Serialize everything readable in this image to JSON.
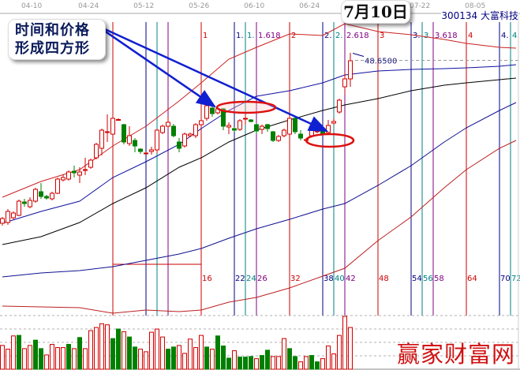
{
  "header": {
    "stock_title": "300134 大富科技",
    "callout_text_line1": "时间和价格",
    "callout_text_line2": "形成四方形",
    "date_callout": "7月10日",
    "watermark": "赢家财富网"
  },
  "colors": {
    "up": "#d00000",
    "down": "#008000",
    "cycle_red": "#cc0000",
    "cycle_navy": "#000080",
    "cycle_teal": "#008080",
    "cycle_purple": "#800080",
    "arrow": "#1020d0",
    "ellipse": "#dd1010"
  },
  "chart_data": {
    "type": "candlestick",
    "x_unit": "bars from cycle origin",
    "x_ticks": [
      {
        "t": -14.7,
        "label": "04-10"
      },
      {
        "t": -4.4,
        "label": "04-24"
      },
      {
        "t": 5.6,
        "label": "05-12"
      },
      {
        "t": 15.6,
        "label": "05-26"
      },
      {
        "t": 25.6,
        "label": "06-10"
      },
      {
        "t": 35.6,
        "label": "06-24"
      },
      {
        "t": 55.6,
        "label": "07-22"
      },
      {
        "t": 65.6,
        "label": "08-05"
      }
    ],
    "price_label": {
      "value": "48.6500",
      "price": 48.65
    },
    "candles_start_t": -20,
    "candles_ohlc": [
      [
        28.0,
        28.6,
        28.8,
        27.7
      ],
      [
        28.1,
        29.5,
        29.8,
        27.8
      ],
      [
        28.7,
        29.3,
        29.5,
        28.5
      ],
      [
        29.0,
        30.8,
        31.0,
        28.9
      ],
      [
        30.7,
        30.5,
        31.1,
        30.1
      ],
      [
        30.1,
        30.9,
        31.3,
        29.9
      ],
      [
        30.8,
        32.3,
        32.5,
        30.6
      ],
      [
        32.0,
        31.4,
        33.1,
        31.1
      ],
      [
        31.4,
        31.2,
        31.6,
        31.0
      ],
      [
        31.1,
        31.8,
        32.0,
        30.9
      ],
      [
        31.8,
        33.6,
        33.8,
        31.7
      ],
      [
        33.5,
        33.8,
        34.2,
        33.3
      ],
      [
        33.6,
        34.5,
        34.7,
        33.4
      ],
      [
        34.6,
        34.4,
        35.3,
        33.8
      ],
      [
        34.1,
        34.5,
        35.1,
        33.1
      ],
      [
        34.8,
        34.7,
        36.3,
        34.1
      ],
      [
        35.1,
        36.0,
        36.2,
        34.9
      ],
      [
        36.3,
        38.0,
        38.2,
        36.1
      ],
      [
        37.5,
        39.8,
        40.0,
        36.6
      ],
      [
        39.6,
        39.5,
        41.8,
        38.3
      ],
      [
        39.3,
        41.3,
        41.6,
        38.3
      ],
      [
        41.15,
        41.1,
        41.3,
        41.0
      ],
      [
        40.5,
        38.3,
        40.6,
        38.0
      ],
      [
        38.1,
        39.1,
        40.3,
        37.8
      ],
      [
        38.5,
        37.8,
        38.8,
        37.0
      ],
      [
        37.4,
        37.1,
        37.5,
        36.8
      ],
      [
        36.9,
        36.9,
        37.0,
        36.8
      ],
      [
        37.1,
        37.3,
        37.7,
        36.7
      ],
      [
        37.3,
        39.8,
        40.0,
        36.9
      ],
      [
        39.5,
        40.3,
        40.5,
        39.3
      ],
      [
        40.3,
        40.8,
        41.5,
        40.1
      ],
      [
        40.3,
        39.1,
        40.6,
        38.9
      ],
      [
        38.3,
        37.5,
        38.8,
        37.0
      ],
      [
        37.8,
        39.3,
        39.5,
        37.6
      ],
      [
        39.1,
        39.3,
        39.5,
        38.9
      ],
      [
        39.1,
        40.5,
        40.7,
        38.8
      ],
      [
        40.5,
        41.0,
        41.3,
        40.3
      ],
      [
        41.3,
        42.9,
        43.1,
        41.0
      ],
      [
        42.6,
        41.9,
        43.1,
        41.5
      ],
      [
        42.0,
        42.5,
        42.7,
        41.8
      ],
      [
        42.5,
        40.3,
        42.6,
        39.8
      ],
      [
        40.2,
        40.4,
        40.8,
        39.3
      ],
      [
        40.0,
        39.8,
        40.2,
        39.6
      ],
      [
        39.9,
        41.0,
        41.2,
        39.7
      ],
      [
        41.3,
        41.2,
        41.8,
        40.5
      ],
      [
        41.1,
        40.9,
        41.2,
        40.8
      ],
      [
        40.5,
        39.7,
        40.7,
        39.3
      ],
      [
        39.9,
        40.3,
        40.5,
        39.3
      ],
      [
        40.5,
        40.0,
        40.6,
        39.6
      ],
      [
        39.6,
        38.5,
        39.7,
        38.3
      ],
      [
        38.5,
        39.0,
        39.2,
        38.3
      ],
      [
        39.1,
        39.8,
        40.0,
        38.9
      ],
      [
        39.3,
        41.3,
        41.7,
        39.1
      ],
      [
        41.3,
        39.6,
        41.5,
        39.3
      ],
      [
        39.3,
        38.8,
        39.8,
        38.5
      ],
      [
        38.6,
        38.6,
        38.8,
        38.4
      ],
      [
        39.1,
        39.8,
        40.0,
        38.9
      ],
      [
        39.7,
        39.6,
        40.1,
        39.4
      ],
      [
        39.6,
        39.3,
        39.8,
        39.1
      ],
      [
        39.5,
        40.4,
        41.1,
        39.3
      ],
      [
        40.7,
        40.9,
        41.3,
        40.5
      ],
      [
        42.1,
        43.6,
        43.8,
        41.9
      ],
      [
        45.3,
        46.3,
        47.1,
        44.3
      ],
      [
        46.3,
        48.6,
        49.6,
        45.3
      ]
    ],
    "volume_relative": [
      [
        0.45,
        "r"
      ],
      [
        0.38,
        "r"
      ],
      [
        0.63,
        "r"
      ],
      [
        0.64,
        "g"
      ],
      [
        0.39,
        "r"
      ],
      [
        0.45,
        "r"
      ],
      [
        0.55,
        "g"
      ],
      [
        0.39,
        "g"
      ],
      [
        0.27,
        "r"
      ],
      [
        0.47,
        "r"
      ],
      [
        0.41,
        "r"
      ],
      [
        0.41,
        "r"
      ],
      [
        0.47,
        "g"
      ],
      [
        0.39,
        "r"
      ],
      [
        0.6,
        "g"
      ],
      [
        0.39,
        "r"
      ],
      [
        0.73,
        "r"
      ],
      [
        0.79,
        "r"
      ],
      [
        0.86,
        "r"
      ],
      [
        0.84,
        "r"
      ],
      [
        0.58,
        "g"
      ],
      [
        0.76,
        "g"
      ],
      [
        0.71,
        "r"
      ],
      [
        0.61,
        "g"
      ],
      [
        0.42,
        "g"
      ],
      [
        0.38,
        "r"
      ],
      [
        0.33,
        "r"
      ],
      [
        0.7,
        "r"
      ],
      [
        0.76,
        "r"
      ],
      [
        0.61,
        "r"
      ],
      [
        0.38,
        "g"
      ],
      [
        0.42,
        "g"
      ],
      [
        0.45,
        "r"
      ],
      [
        0.3,
        "r"
      ],
      [
        0.57,
        "r"
      ],
      [
        0.41,
        "r"
      ],
      [
        0.64,
        "r"
      ],
      [
        0.42,
        "g"
      ],
      [
        0.38,
        "r"
      ],
      [
        0.63,
        "g"
      ],
      [
        0.44,
        "g"
      ],
      [
        0.21,
        "g"
      ],
      [
        0.35,
        "r"
      ],
      [
        0.23,
        "g"
      ],
      [
        0.23,
        "g"
      ],
      [
        0.24,
        "g"
      ],
      [
        0.2,
        "r"
      ],
      [
        0.26,
        "g"
      ],
      [
        0.36,
        "g"
      ],
      [
        0.24,
        "r"
      ],
      [
        0.24,
        "r"
      ],
      [
        0.58,
        "r"
      ],
      [
        0.39,
        "g"
      ],
      [
        0.24,
        "g"
      ],
      [
        0.14,
        "r"
      ],
      [
        0.24,
        "r"
      ],
      [
        0.26,
        "g"
      ],
      [
        0.14,
        "g"
      ],
      [
        0.2,
        "r"
      ],
      [
        0.44,
        "r"
      ],
      [
        0.29,
        "r"
      ],
      [
        0.64,
        "r"
      ],
      [
        1.0,
        "r"
      ],
      [
        0.79,
        "r"
      ]
    ],
    "ma_t": [
      -20,
      -13,
      -6,
      0,
      6,
      12,
      16,
      21,
      26,
      32,
      38,
      42,
      48,
      54,
      60,
      64,
      70,
      73
    ],
    "ma_lines": [
      {
        "color": "#cc2020",
        "values": [
          31.3,
          33.3,
          34.8,
          37.8,
          40.3,
          43.5,
          45.8,
          48.8,
          50.3,
          52.0,
          51.8,
          53.3,
          52.3,
          51.9,
          51.3,
          50.8,
          50.3,
          50.2
        ]
      },
      {
        "color": "#1010a0",
        "values": [
          28.0,
          29.5,
          30.8,
          33.8,
          35.8,
          38.0,
          40.0,
          42.3,
          44.1,
          44.8,
          45.8,
          46.8,
          47.3,
          47.5,
          47.6,
          47.7,
          47.9,
          48.1
        ]
      },
      {
        "color": "#000000",
        "values": [
          25.3,
          26.3,
          28.1,
          30.5,
          32.5,
          35.1,
          36.3,
          38.3,
          39.8,
          41.1,
          42.3,
          43.0,
          43.8,
          44.8,
          45.5,
          45.8,
          46.2,
          46.4
        ]
      },
      {
        "color": "#101090",
        "values": [
          21.2,
          21.7,
          22.0,
          22.5,
          23.3,
          24.1,
          24.8,
          26.1,
          27.3,
          28.5,
          29.8,
          30.5,
          32.8,
          35.3,
          38.3,
          40.1,
          42.3,
          43.3
        ]
      },
      {
        "color": "#bb2020",
        "values": [
          17.5,
          17.4,
          17.3,
          16.6,
          17.0,
          16.8,
          17.0,
          18.0,
          18.6,
          19.8,
          21.3,
          22.3,
          25.8,
          28.8,
          32.5,
          34.8,
          37.5,
          38.5
        ]
      }
    ],
    "time_cycles": [
      {
        "t": 0,
        "color": "red",
        "top": "",
        "bottom": ""
      },
      {
        "t": 6,
        "color": "navy",
        "top": "",
        "bottom": ""
      },
      {
        "t": 8,
        "color": "teal",
        "top": "",
        "bottom": ""
      },
      {
        "t": 10,
        "color": "purple",
        "top": "",
        "bottom": ""
      },
      {
        "t": 16,
        "color": "red",
        "top": "1",
        "bottom": "16"
      },
      {
        "t": 22,
        "color": "navy",
        "top": "1.",
        "bottom": "22"
      },
      {
        "t": 24,
        "color": "teal",
        "top": "1.",
        "bottom": "24"
      },
      {
        "t": 26,
        "color": "purple",
        "top": "1.618",
        "bottom": "26"
      },
      {
        "t": 32,
        "color": "red",
        "top": "2",
        "bottom": "32"
      },
      {
        "t": 38,
        "color": "navy",
        "top": "2.",
        "bottom": "38"
      },
      {
        "t": 40,
        "color": "teal",
        "top": "2.",
        "bottom": "40"
      },
      {
        "t": 42,
        "color": "purple",
        "top": "2.618",
        "bottom": "42"
      },
      {
        "t": 48,
        "color": "red",
        "top": "3",
        "bottom": "48"
      },
      {
        "t": 54,
        "color": "navy",
        "top": "3.",
        "bottom": "54"
      },
      {
        "t": 56,
        "color": "teal",
        "top": "3.",
        "bottom": "56"
      },
      {
        "t": 58,
        "color": "purple",
        "top": "3.618",
        "bottom": "58"
      },
      {
        "t": 64,
        "color": "red",
        "top": "4",
        "bottom": "64"
      },
      {
        "t": 70,
        "color": "navy",
        "top": "4.",
        "bottom": "70"
      },
      {
        "t": 72,
        "color": "teal",
        "top": "4.",
        "bottom": "72"
      }
    ],
    "grid": false
  }
}
